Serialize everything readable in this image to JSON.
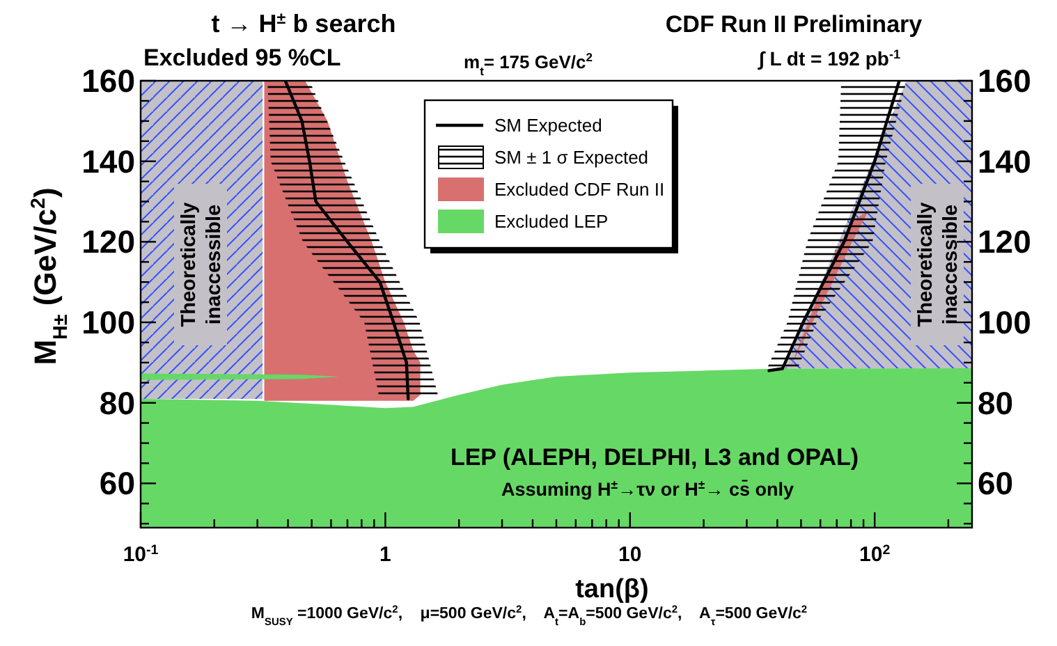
{
  "chart_data": {
    "type": "area",
    "title": "t → H$^{±}$ b search",
    "subtitle": "Excluded 95 %CL",
    "xlabel": "tan(β)",
    "ylabel": "M$_{H±}$ (GeV/c$^{2}$)",
    "annotations": [
      "CDF Run II Preliminary",
      "m$_{t}$= 175 GeV/c$^{2}$",
      "∫ L dt = 192 pb$^{-1}$",
      "LEP (ALEPH, DELPHI, L3 and OPAL)",
      "Assuming H$^{±}$→τν or H$^{±}$→ cs̄ only",
      "M$_{SUSY}$ =1000 GeV/c$^{2}$,    μ=500 GeV/c$^{2}$,    A$_{t}$=A$_{b}$=500 GeV/c$^{2}$,    A$_{τ}$=500 GeV/c$^{2}$",
      "Theoretically inaccessible",
      "Theoretically inaccessible"
    ],
    "log": "x",
    "xlim": [
      0.1,
      250
    ],
    "xticks": [
      {
        "value": 0.1,
        "label": "10$^{-1}$"
      },
      {
        "value": 0.2,
        "label": null
      },
      {
        "value": 0.3,
        "label": null
      },
      {
        "value": 0.4,
        "label": null
      },
      {
        "value": 0.5,
        "label": null
      },
      {
        "value": 0.6,
        "label": null
      },
      {
        "value": 0.7,
        "label": null
      },
      {
        "value": 0.8,
        "label": null
      },
      {
        "value": 0.9,
        "label": null
      },
      1,
      {
        "value": 2,
        "label": null
      },
      {
        "value": 3,
        "label": null
      },
      {
        "value": 4,
        "label": null
      },
      {
        "value": 5,
        "label": null
      },
      {
        "value": 6,
        "label": null
      },
      {
        "value": 7,
        "label": null
      },
      {
        "value": 8,
        "label": null
      },
      {
        "value": 9,
        "label": null
      },
      10,
      {
        "value": 20,
        "label": null
      },
      {
        "value": 30,
        "label": null
      },
      {
        "value": 40,
        "label": null
      },
      {
        "value": 50,
        "label": null
      },
      {
        "value": 60,
        "label": null
      },
      {
        "value": 70,
        "label": null
      },
      {
        "value": 80,
        "label": null
      },
      {
        "value": 90,
        "label": null
      },
      {
        "value": 100,
        "label": "10$^{2}$"
      },
      {
        "value": 200,
        "label": null
      }
    ],
    "ylim": [
      49,
      160
    ],
    "yticks": [
      {
        "value": 50,
        "label": null
      },
      {
        "value": 55,
        "label": null
      },
      60,
      {
        "value": 65,
        "label": null
      },
      {
        "value": 70,
        "label": null
      },
      {
        "value": 75,
        "label": null
      },
      80,
      {
        "value": 85,
        "label": null
      },
      {
        "value": 90,
        "label": null
      },
      {
        "value": 95,
        "label": null
      },
      100,
      {
        "value": 105,
        "label": null
      },
      {
        "value": 110,
        "label": null
      },
      {
        "value": 115,
        "label": null
      },
      120,
      {
        "value": 125,
        "label": null
      },
      {
        "value": 130,
        "label": null
      },
      {
        "value": 135,
        "label": null
      },
      140,
      {
        "value": 145,
        "label": null
      },
      {
        "value": 150,
        "label": null
      },
      {
        "value": 155,
        "label": null
      },
      160
    ],
    "y2lim": [
      49,
      160
    ],
    "y2ticks": [
      {
        "value": 50,
        "label": null
      },
      {
        "value": 55,
        "label": null
      },
      60,
      {
        "value": 65,
        "label": null
      },
      {
        "value": 70,
        "label": null
      },
      {
        "value": 75,
        "label": null
      },
      80,
      {
        "value": 85,
        "label": null
      },
      {
        "value": 90,
        "label": null
      },
      {
        "value": 95,
        "label": null
      },
      100,
      {
        "value": 105,
        "label": null
      },
      {
        "value": 110,
        "label": null
      },
      {
        "value": 115,
        "label": null
      },
      120,
      {
        "value": 125,
        "label": null
      },
      {
        "value": 130,
        "label": null
      },
      {
        "value": 135,
        "label": null
      },
      140,
      {
        "value": 145,
        "label": null
      },
      {
        "value": 150,
        "label": null
      },
      {
        "value": 155,
        "label": null
      },
      160
    ],
    "legend": "top",
    "series": [
      {
        "type": "line",
        "name": "SM Expected",
        "color": "#000000",
        "x": [
          1.24,
          1.22,
          1.08,
          0.95,
          0.7,
          0.52,
          0.49,
          0.456,
          0.39
        ],
        "values": [
          81,
          90,
          100,
          110,
          120,
          130,
          140,
          150,
          160
        ]
      },
      {
        "type": "line",
        "color": "#000000",
        "x": [
          37,
          42,
          51,
          75,
          100,
          126
        ],
        "values": [
          88,
          88.5,
          100,
          120,
          140,
          160
        ]
      },
      {
        "name": "SM ± 1 σ Expected",
        "color": "#000000",
        "x": [
          0.33,
          0.34,
          0.46,
          0.49,
          0.68,
          0.82,
          0.94,
          0.95,
          1.38,
          1.64
        ],
        "values": [
          null,
          null,
          null,
          null,
          null,
          null,
          null,
          null,
          null,
          null
        ],
        "upper": [
          160,
          160,
          160,
          160,
          140,
          128.8,
          120.7,
          120,
          100,
          82
        ],
        "lower": [
          160,
          140,
          120,
          117.8,
          106.5,
          100,
          82,
          82,
          82,
          82
        ]
      },
      {
        "color": "#000000",
        "x": [
          36,
          44,
          48,
          53,
          58,
          71,
          73,
          98,
          111,
          135
        ],
        "values": [
          null,
          null,
          null,
          null,
          null,
          null,
          null,
          null,
          null,
          null
        ],
        "upper": [
          88,
          100,
          109.4,
          120,
          126.2,
          140,
          160,
          160,
          160,
          160
        ],
        "lower": [
          88,
          88,
          88,
          94.3,
          100,
          107.7,
          108.8,
          120,
          140,
          160
        ]
      },
      {
        "name": "Excluded CDF Run II",
        "color": "#d87070",
        "x": [
          0.32,
          0.47,
          0.58,
          0.7,
          0.88,
          1.0,
          1.19,
          1.3,
          1.39
        ],
        "values": [
          null,
          null,
          null,
          null,
          null,
          null,
          null,
          null,
          null
        ],
        "upper": [
          160,
          160,
          150,
          135,
          120,
          110,
          100,
          93,
          90
        ],
        "lower": [
          80.5,
          80.5,
          80.5,
          80.5,
          80.5,
          80.5,
          80.5,
          80.5,
          82
        ]
      },
      {
        "color": "#d87070",
        "x": [
          45,
          55,
          70,
          81,
          95
        ],
        "values": [
          null,
          null,
          null,
          null,
          null
        ],
        "upper": [
          88.5,
          102,
          118,
          125,
          128
        ],
        "lower": [
          88.5,
          99.3,
          112,
          120,
          128
        ]
      },
      {
        "name": "Excluded LEP",
        "color": "#66d866",
        "x": [
          0.1,
          0.3,
          0.6,
          1.0,
          1.3,
          2,
          3,
          5,
          10,
          20,
          40,
          250
        ],
        "values": [
          81,
          80.5,
          79.5,
          78.7,
          79,
          82,
          84.5,
          86.5,
          87.5,
          88,
          88.5,
          88.6
        ]
      },
      {
        "color": "#66d866",
        "x": [
          0.1,
          0.45,
          0.65
        ],
        "values": [
          null,
          null,
          null
        ],
        "upper": [
          87.3,
          87,
          86.5
        ],
        "lower": [
          85.7,
          85.9,
          86.5
        ]
      },
      {
        "color": "#c4c0c8",
        "x": [
          0.1,
          0.315
        ],
        "values": [
          null,
          null
        ],
        "upper": [
          160,
          160
        ],
        "lower": [
          81,
          81
        ]
      },
      {
        "color": "#c4c0c8",
        "x": [
          43,
          135,
          250
        ],
        "values": [
          null,
          null,
          null
        ],
        "upper": [
          88.5,
          160,
          160
        ],
        "lower": [
          88.5,
          88.5,
          88.5
        ]
      }
    ]
  }
}
